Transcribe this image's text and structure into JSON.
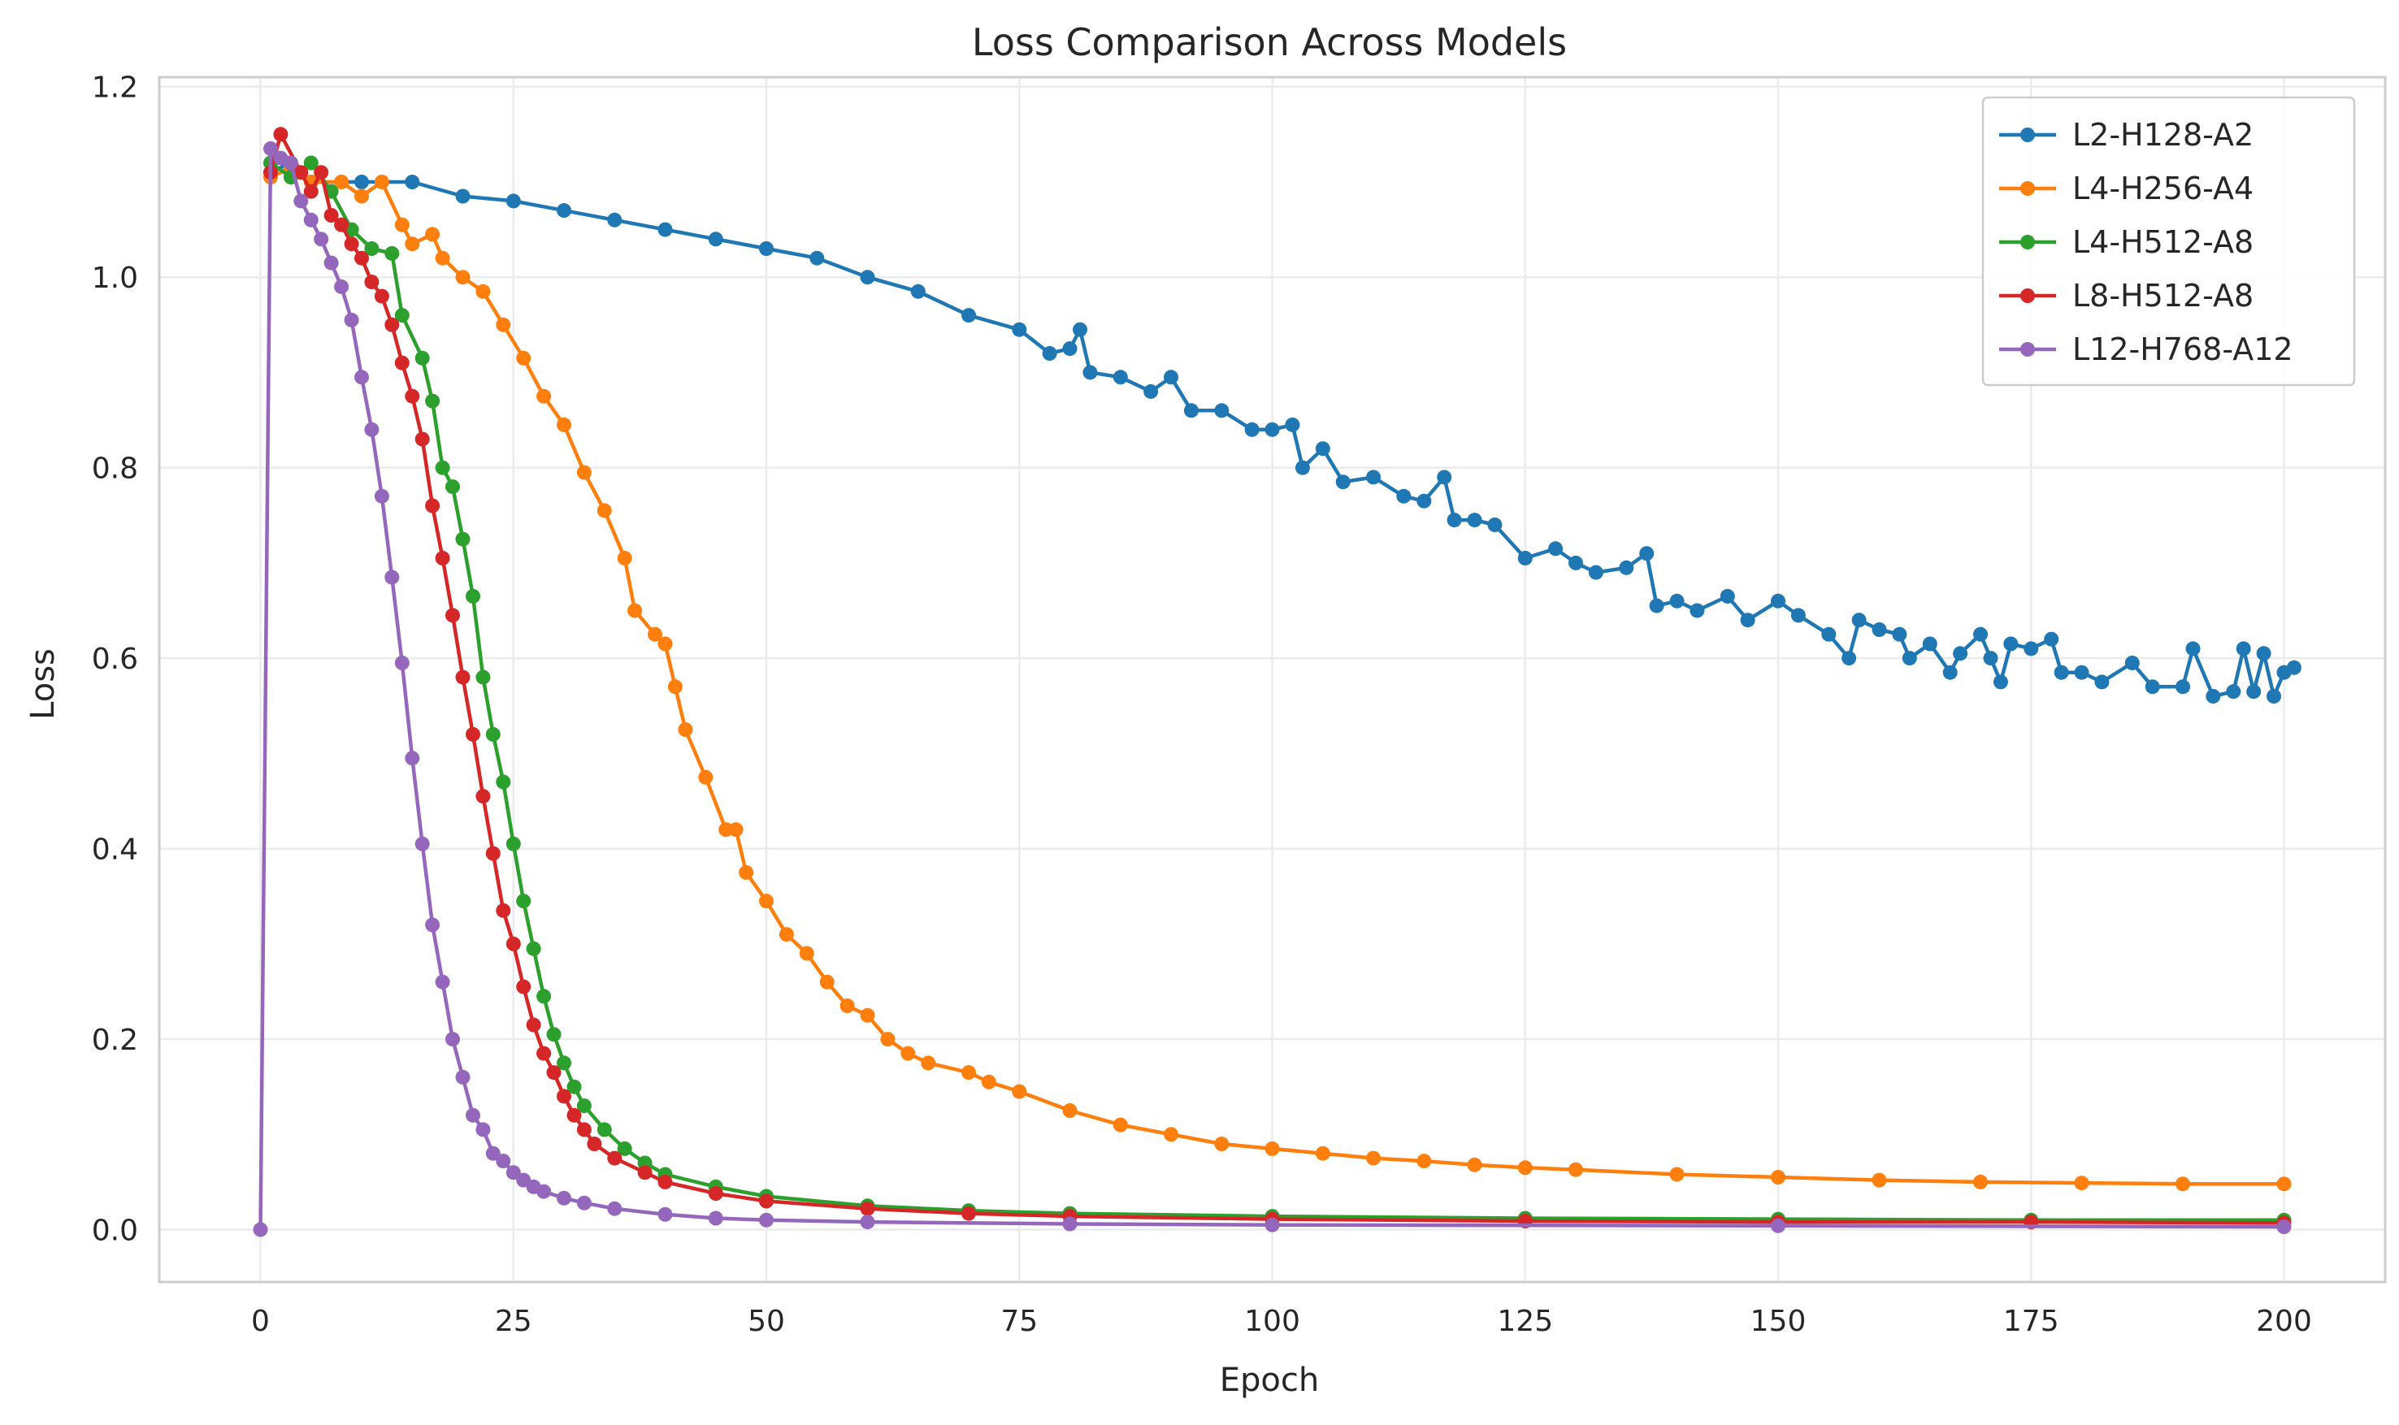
{
  "chart_data": {
    "type": "line",
    "title": "Loss Comparison Across Models",
    "xlabel": "Epoch",
    "ylabel": "Loss",
    "xlim": [
      -10,
      210
    ],
    "ylim": [
      -0.055,
      1.21
    ],
    "xticks": [
      0,
      25,
      50,
      75,
      100,
      125,
      150,
      175,
      200
    ],
    "yticks": [
      0.0,
      0.2,
      0.4,
      0.6,
      0.8,
      1.0,
      1.2
    ],
    "grid": true,
    "legend_position": "top-right",
    "marker": "circle",
    "series": [
      {
        "name": "L2-H128-A2",
        "color": "#1f77b4",
        "points": [
          [
            1,
            1.11
          ],
          [
            3,
            1.12
          ],
          [
            5,
            1.1
          ],
          [
            10,
            1.1
          ],
          [
            15,
            1.1
          ],
          [
            20,
            1.085
          ],
          [
            25,
            1.08
          ],
          [
            30,
            1.07
          ],
          [
            35,
            1.06
          ],
          [
            40,
            1.05
          ],
          [
            45,
            1.04
          ],
          [
            50,
            1.03
          ],
          [
            55,
            1.02
          ],
          [
            60,
            1.0
          ],
          [
            65,
            0.985
          ],
          [
            70,
            0.96
          ],
          [
            75,
            0.945
          ],
          [
            78,
            0.92
          ],
          [
            80,
            0.925
          ],
          [
            81,
            0.945
          ],
          [
            82,
            0.9
          ],
          [
            85,
            0.895
          ],
          [
            88,
            0.88
          ],
          [
            90,
            0.895
          ],
          [
            92,
            0.86
          ],
          [
            95,
            0.86
          ],
          [
            98,
            0.84
          ],
          [
            100,
            0.84
          ],
          [
            102,
            0.845
          ],
          [
            103,
            0.8
          ],
          [
            105,
            0.82
          ],
          [
            107,
            0.785
          ],
          [
            110,
            0.79
          ],
          [
            113,
            0.77
          ],
          [
            115,
            0.765
          ],
          [
            117,
            0.79
          ],
          [
            118,
            0.745
          ],
          [
            120,
            0.745
          ],
          [
            122,
            0.74
          ],
          [
            125,
            0.705
          ],
          [
            128,
            0.715
          ],
          [
            130,
            0.7
          ],
          [
            132,
            0.69
          ],
          [
            135,
            0.695
          ],
          [
            137,
            0.71
          ],
          [
            138,
            0.655
          ],
          [
            140,
            0.66
          ],
          [
            142,
            0.65
          ],
          [
            145,
            0.665
          ],
          [
            147,
            0.64
          ],
          [
            150,
            0.66
          ],
          [
            152,
            0.645
          ],
          [
            155,
            0.625
          ],
          [
            157,
            0.6
          ],
          [
            158,
            0.64
          ],
          [
            160,
            0.63
          ],
          [
            162,
            0.625
          ],
          [
            163,
            0.6
          ],
          [
            165,
            0.615
          ],
          [
            167,
            0.585
          ],
          [
            168,
            0.605
          ],
          [
            170,
            0.625
          ],
          [
            171,
            0.6
          ],
          [
            172,
            0.575
          ],
          [
            173,
            0.615
          ],
          [
            175,
            0.61
          ],
          [
            177,
            0.62
          ],
          [
            178,
            0.585
          ],
          [
            180,
            0.585
          ],
          [
            182,
            0.575
          ],
          [
            185,
            0.595
          ],
          [
            187,
            0.57
          ],
          [
            190,
            0.57
          ],
          [
            191,
            0.61
          ],
          [
            193,
            0.56
          ],
          [
            195,
            0.565
          ],
          [
            196,
            0.61
          ],
          [
            197,
            0.565
          ],
          [
            198,
            0.605
          ],
          [
            199,
            0.56
          ],
          [
            200,
            0.585
          ],
          [
            201,
            0.59
          ]
        ]
      },
      {
        "name": "L4-H256-A4",
        "color": "#ff7f0e",
        "points": [
          [
            1,
            1.105
          ],
          [
            3,
            1.115
          ],
          [
            5,
            1.1
          ],
          [
            8,
            1.1
          ],
          [
            10,
            1.085
          ],
          [
            12,
            1.1
          ],
          [
            14,
            1.055
          ],
          [
            15,
            1.035
          ],
          [
            17,
            1.045
          ],
          [
            18,
            1.02
          ],
          [
            20,
            1.0
          ],
          [
            22,
            0.985
          ],
          [
            24,
            0.95
          ],
          [
            26,
            0.915
          ],
          [
            28,
            0.875
          ],
          [
            30,
            0.845
          ],
          [
            32,
            0.795
          ],
          [
            34,
            0.755
          ],
          [
            36,
            0.705
          ],
          [
            37,
            0.65
          ],
          [
            39,
            0.625
          ],
          [
            40,
            0.615
          ],
          [
            41,
            0.57
          ],
          [
            42,
            0.525
          ],
          [
            44,
            0.475
          ],
          [
            46,
            0.42
          ],
          [
            47,
            0.42
          ],
          [
            48,
            0.375
          ],
          [
            50,
            0.345
          ],
          [
            52,
            0.31
          ],
          [
            54,
            0.29
          ],
          [
            56,
            0.26
          ],
          [
            58,
            0.235
          ],
          [
            60,
            0.225
          ],
          [
            62,
            0.2
          ],
          [
            64,
            0.185
          ],
          [
            66,
            0.175
          ],
          [
            70,
            0.165
          ],
          [
            72,
            0.155
          ],
          [
            75,
            0.145
          ],
          [
            80,
            0.125
          ],
          [
            85,
            0.11
          ],
          [
            90,
            0.1
          ],
          [
            95,
            0.09
          ],
          [
            100,
            0.085
          ],
          [
            105,
            0.08
          ],
          [
            110,
            0.075
          ],
          [
            115,
            0.072
          ],
          [
            120,
            0.068
          ],
          [
            125,
            0.065
          ],
          [
            130,
            0.063
          ],
          [
            140,
            0.058
          ],
          [
            150,
            0.055
          ],
          [
            160,
            0.052
          ],
          [
            170,
            0.05
          ],
          [
            180,
            0.049
          ],
          [
            190,
            0.048
          ],
          [
            200,
            0.048
          ]
        ]
      },
      {
        "name": "L4-H512-A8",
        "color": "#2ca02c",
        "points": [
          [
            1,
            1.12
          ],
          [
            3,
            1.105
          ],
          [
            5,
            1.12
          ],
          [
            7,
            1.09
          ],
          [
            9,
            1.05
          ],
          [
            11,
            1.03
          ],
          [
            13,
            1.025
          ],
          [
            14,
            0.96
          ],
          [
            16,
            0.915
          ],
          [
            17,
            0.87
          ],
          [
            18,
            0.8
          ],
          [
            19,
            0.78
          ],
          [
            20,
            0.725
          ],
          [
            21,
            0.665
          ],
          [
            22,
            0.58
          ],
          [
            23,
            0.52
          ],
          [
            24,
            0.47
          ],
          [
            25,
            0.405
          ],
          [
            26,
            0.345
          ],
          [
            27,
            0.295
          ],
          [
            28,
            0.245
          ],
          [
            29,
            0.205
          ],
          [
            30,
            0.175
          ],
          [
            31,
            0.15
          ],
          [
            32,
            0.13
          ],
          [
            34,
            0.105
          ],
          [
            36,
            0.085
          ],
          [
            38,
            0.07
          ],
          [
            40,
            0.058
          ],
          [
            45,
            0.045
          ],
          [
            50,
            0.035
          ],
          [
            60,
            0.025
          ],
          [
            70,
            0.02
          ],
          [
            80,
            0.017
          ],
          [
            100,
            0.014
          ],
          [
            125,
            0.012
          ],
          [
            150,
            0.011
          ],
          [
            175,
            0.01
          ],
          [
            200,
            0.01
          ]
        ]
      },
      {
        "name": "L8-H512-A8",
        "color": "#d62728",
        "points": [
          [
            1,
            1.11
          ],
          [
            2,
            1.15
          ],
          [
            4,
            1.11
          ],
          [
            5,
            1.09
          ],
          [
            6,
            1.11
          ],
          [
            7,
            1.065
          ],
          [
            8,
            1.055
          ],
          [
            9,
            1.035
          ],
          [
            10,
            1.02
          ],
          [
            11,
            0.995
          ],
          [
            12,
            0.98
          ],
          [
            13,
            0.95
          ],
          [
            14,
            0.91
          ],
          [
            15,
            0.875
          ],
          [
            16,
            0.83
          ],
          [
            17,
            0.76
          ],
          [
            18,
            0.705
          ],
          [
            19,
            0.645
          ],
          [
            20,
            0.58
          ],
          [
            21,
            0.52
          ],
          [
            22,
            0.455
          ],
          [
            23,
            0.395
          ],
          [
            24,
            0.335
          ],
          [
            25,
            0.3
          ],
          [
            26,
            0.255
          ],
          [
            27,
            0.215
          ],
          [
            28,
            0.185
          ],
          [
            29,
            0.165
          ],
          [
            30,
            0.14
          ],
          [
            31,
            0.12
          ],
          [
            32,
            0.105
          ],
          [
            33,
            0.09
          ],
          [
            35,
            0.075
          ],
          [
            38,
            0.06
          ],
          [
            40,
            0.05
          ],
          [
            45,
            0.038
          ],
          [
            50,
            0.03
          ],
          [
            60,
            0.022
          ],
          [
            70,
            0.017
          ],
          [
            80,
            0.014
          ],
          [
            100,
            0.011
          ],
          [
            125,
            0.009
          ],
          [
            150,
            0.008
          ],
          [
            175,
            0.008
          ],
          [
            200,
            0.007
          ]
        ]
      },
      {
        "name": "L12-H768-A12",
        "color": "#9467bd",
        "points": [
          [
            0,
            0.0
          ],
          [
            1,
            1.135
          ],
          [
            2,
            1.125
          ],
          [
            3,
            1.12
          ],
          [
            4,
            1.08
          ],
          [
            5,
            1.06
          ],
          [
            6,
            1.04
          ],
          [
            7,
            1.015
          ],
          [
            8,
            0.99
          ],
          [
            9,
            0.955
          ],
          [
            10,
            0.895
          ],
          [
            11,
            0.84
          ],
          [
            12,
            0.77
          ],
          [
            13,
            0.685
          ],
          [
            14,
            0.595
          ],
          [
            15,
            0.495
          ],
          [
            16,
            0.405
          ],
          [
            17,
            0.32
          ],
          [
            18,
            0.26
          ],
          [
            19,
            0.2
          ],
          [
            20,
            0.16
          ],
          [
            21,
            0.12
          ],
          [
            22,
            0.105
          ],
          [
            23,
            0.08
          ],
          [
            24,
            0.072
          ],
          [
            25,
            0.06
          ],
          [
            26,
            0.052
          ],
          [
            27,
            0.045
          ],
          [
            28,
            0.04
          ],
          [
            30,
            0.033
          ],
          [
            32,
            0.028
          ],
          [
            35,
            0.022
          ],
          [
            40,
            0.016
          ],
          [
            45,
            0.012
          ],
          [
            50,
            0.01
          ],
          [
            60,
            0.008
          ],
          [
            80,
            0.006
          ],
          [
            100,
            0.005
          ],
          [
            150,
            0.004
          ],
          [
            200,
            0.003
          ]
        ]
      }
    ]
  }
}
